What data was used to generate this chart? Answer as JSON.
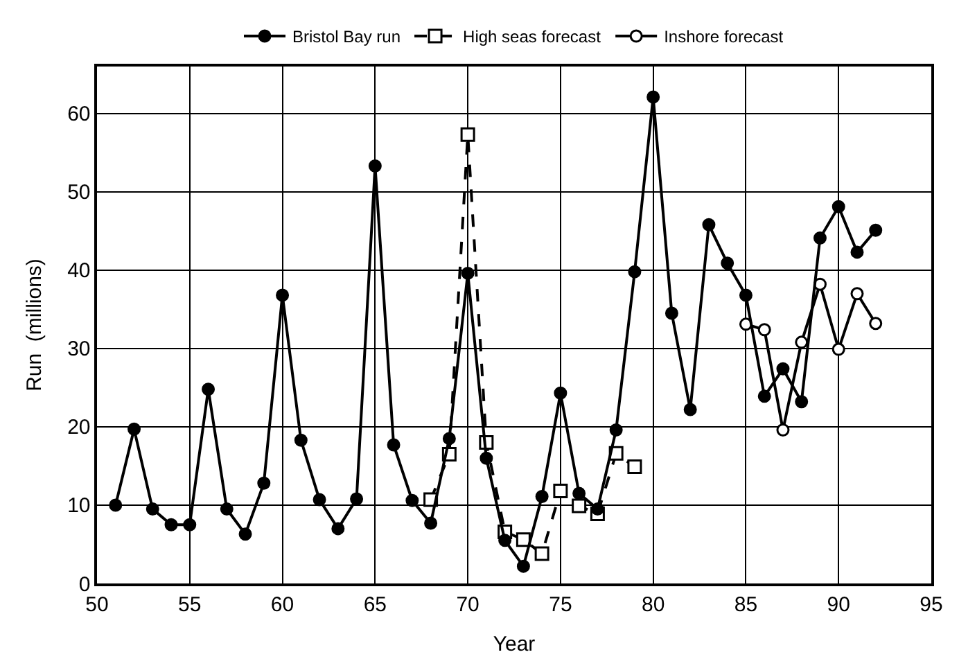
{
  "chart_data": {
    "type": "line",
    "xlabel": "Year",
    "ylabel": "Run  (millions)",
    "xlim": [
      50,
      95
    ],
    "xticks": [
      50,
      55,
      60,
      65,
      70,
      75,
      80,
      85,
      90,
      95
    ],
    "ylim": [
      0,
      66
    ],
    "yticks": [
      0,
      10,
      20,
      30,
      40,
      50,
      60
    ],
    "grid": true,
    "legend": "top",
    "series": [
      {
        "name": "Bristol Bay run",
        "color": "#000000",
        "marker": "circle",
        "line_style": "solid",
        "x": [
          51,
          52,
          53,
          54,
          55,
          56,
          57,
          58,
          59,
          60,
          61,
          62,
          63,
          64,
          65,
          66,
          67,
          68,
          69,
          70,
          71,
          72,
          73,
          74,
          75,
          76,
          77,
          78,
          79,
          80,
          81,
          82,
          83,
          84,
          85,
          86,
          87,
          88,
          89,
          90,
          91,
          92
        ],
        "values": [
          10,
          19.7,
          9.5,
          7.5,
          7.5,
          24.8,
          9.5,
          6.3,
          12.8,
          36.8,
          18.3,
          10.7,
          7,
          10.8,
          53.3,
          17.7,
          10.6,
          7.7,
          18.5,
          39.6,
          16,
          5.5,
          2.2,
          11.1,
          24.3,
          11.5,
          9.5,
          19.6,
          39.8,
          62.1,
          34.5,
          22.2,
          45.8,
          40.9,
          36.8,
          23.9,
          27.4,
          23.2,
          44.1,
          48.1,
          42.3,
          45.1
        ]
      },
      {
        "name": "High seas forecast",
        "color": "#000000",
        "marker": "square",
        "line_style": "dashed",
        "x": [
          68,
          69,
          70,
          71,
          72,
          73,
          74,
          75,
          76,
          77,
          78,
          79
        ],
        "values": [
          10.7,
          16.5,
          57.3,
          18,
          6.6,
          5.6,
          3.8,
          11.8,
          9.9,
          8.9,
          16.6,
          14.9
        ]
      },
      {
        "name": "Inshore forecast",
        "color": "#000000",
        "marker": "circle-open",
        "line_style": "solid",
        "x": [
          85,
          86,
          87,
          88,
          89,
          90,
          91,
          92
        ],
        "values": [
          33.1,
          32.4,
          19.6,
          30.8,
          38.2,
          29.9,
          37.0,
          33.2
        ]
      }
    ]
  }
}
